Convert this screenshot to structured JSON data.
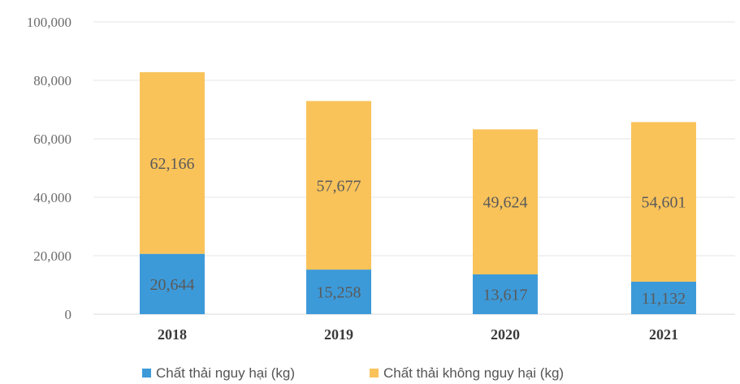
{
  "chart_data": {
    "type": "bar",
    "stacked": true,
    "title": "",
    "xlabel": "",
    "ylabel": "",
    "categories": [
      "2018",
      "2019",
      "2020",
      "2021"
    ],
    "series": [
      {
        "name": "Chất thải nguy hại (kg)",
        "color": "#3d9ad9",
        "values": [
          20644,
          15258,
          13617,
          11132
        ],
        "labels": [
          "20,644",
          "15,258",
          "13,617",
          "11,132"
        ]
      },
      {
        "name": "Chất thải không nguy hại (kg)",
        "color": "#f9c35a",
        "values": [
          62166,
          57677,
          49624,
          54601
        ],
        "labels": [
          "62,166",
          "57,677",
          "49,624",
          "54,601"
        ]
      }
    ],
    "ylim": [
      0,
      100000
    ],
    "yticks": [
      0,
      20000,
      40000,
      60000,
      80000,
      100000
    ],
    "ytick_labels": [
      "0",
      "20,000",
      "40,000",
      "60,000",
      "80,000",
      "100,000"
    ],
    "grid": true,
    "legend_position": "bottom"
  }
}
